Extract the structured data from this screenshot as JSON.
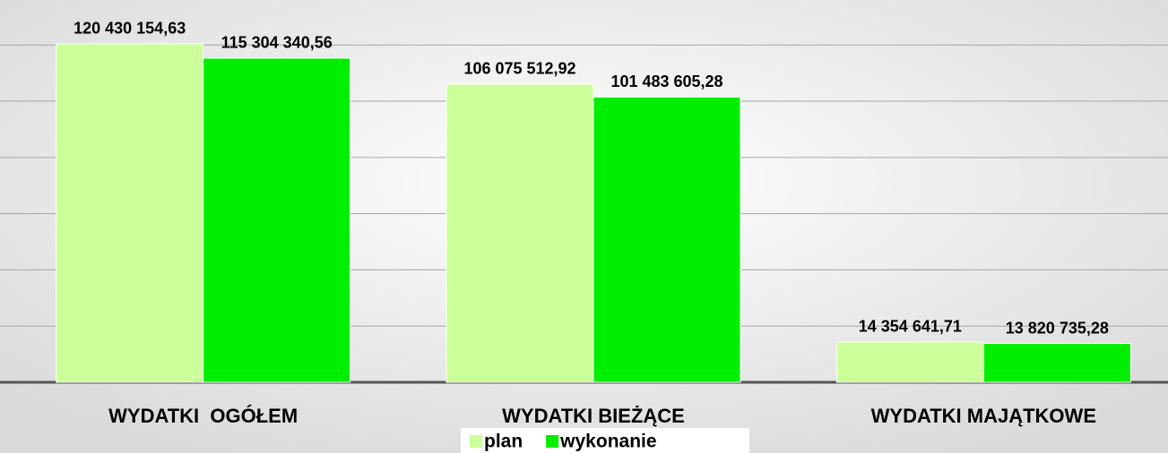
{
  "chart_data": {
    "type": "bar",
    "categories": [
      "WYDATKI  OGÓŁEM",
      "WYDATKI BIEŻĄCE",
      "WYDATKI MAJĄTKOWE"
    ],
    "series": [
      {
        "name": "plan",
        "color": "#ccff99",
        "values": [
          120430154.63,
          106075512.92,
          14354641.71
        ],
        "value_labels": [
          "120 430 154,63",
          "106 075 512,92",
          "14 354 641,71"
        ]
      },
      {
        "name": "wykonanie",
        "color": "#00ee00",
        "values": [
          115304340.56,
          101483605.28,
          13820735.28
        ],
        "value_labels": [
          "115 304 340,56",
          "101 483 605,28",
          "13 820 735,28"
        ]
      }
    ],
    "ylim": [
      0,
      136000000
    ],
    "yticks": [
      0,
      20000000,
      40000000,
      60000000,
      80000000,
      100000000,
      120000000
    ],
    "grid": true,
    "legend": "bottom"
  }
}
